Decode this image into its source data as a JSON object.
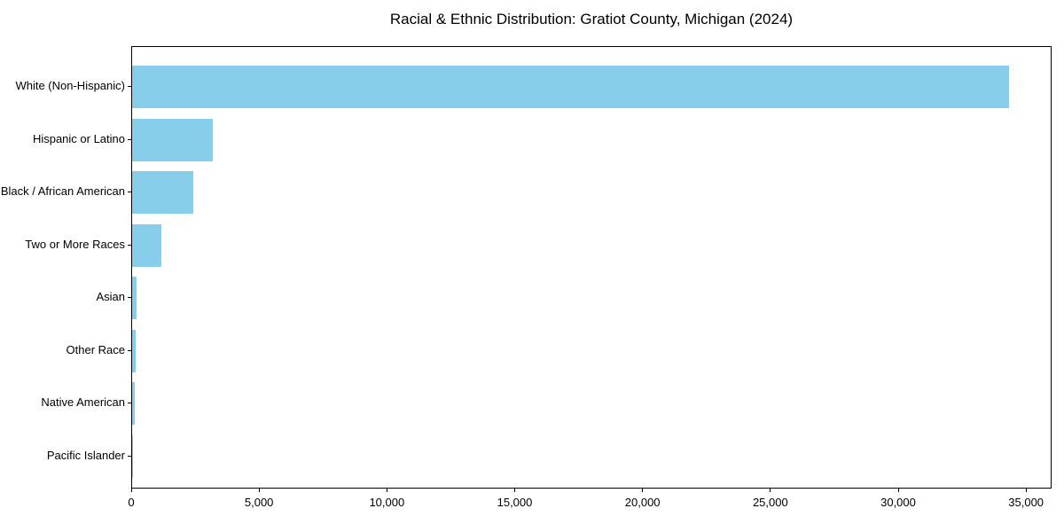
{
  "chart_data": {
    "type": "bar",
    "orientation": "horizontal",
    "title": "Racial & Ethnic Distribution: Gratiot County, Michigan (2024)",
    "xlabel": "",
    "ylabel": "",
    "categories": [
      "White (Non-Hispanic)",
      "Hispanic or Latino",
      "Black / African American",
      "Two or More Races",
      "Asian",
      "Other Race",
      "Native American",
      "Pacific Islander"
    ],
    "values": [
      34300,
      3170,
      2390,
      1135,
      180,
      145,
      110,
      10
    ],
    "bar_color": "#87CEEB",
    "xlim": [
      0,
      36000
    ],
    "xticks": [
      0,
      5000,
      10000,
      15000,
      20000,
      25000,
      30000,
      35000
    ],
    "xtick_labels": [
      "0",
      "5,000",
      "10,000",
      "15,000",
      "20,000",
      "25,000",
      "30,000",
      "35,000"
    ],
    "grid": false,
    "legend": "none",
    "axis_color": "#000000",
    "background_color": "#ffffff"
  }
}
